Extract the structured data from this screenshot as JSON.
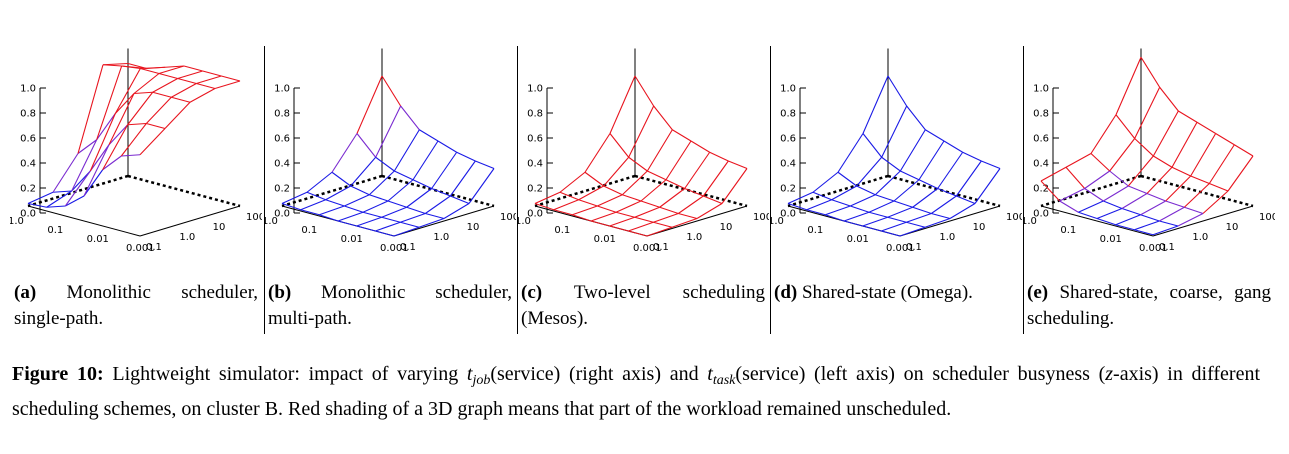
{
  "figure": {
    "label": "Figure 10:",
    "caption_parts": [
      "Lightweight simulator: impact of varying ",
      "t",
      "job",
      "(service) (right axis) and ",
      "t",
      "task",
      "(service) (left axis) on scheduler busyness (",
      "z",
      "-axis) in different scheduling schemes, on cluster B. Red shading of a 3D graph means that part of the workload remained unscheduled."
    ]
  },
  "axes": {
    "z_ticks": [
      "0.0",
      "0.2",
      "0.4",
      "0.6",
      "0.8",
      "1.0"
    ],
    "left_axis_ticks": [
      "1.0",
      "0.1",
      "0.01",
      "0.001"
    ],
    "right_axis_ticks": [
      "0.1",
      "1.0",
      "10",
      "100"
    ]
  },
  "colors": {
    "red": "#e8141e",
    "blue": "#1a1ae6",
    "purple": "#7a2ad0"
  },
  "chart_data": [
    {
      "type": "surface3d",
      "panel": "a",
      "title": "Monolithic scheduler, single-path.",
      "x_label": "",
      "y_label": "",
      "z_label": "",
      "x_ticks": [
        "1.0",
        "0.1",
        "0.01",
        "0.001"
      ],
      "y_ticks": [
        "0.1",
        "1.0",
        "10",
        "100"
      ],
      "z_range": [
        0,
        1
      ],
      "z": [
        [
          0.9,
          0.9,
          0.95,
          1.0,
          1.0,
          1.0,
          1.0
        ],
        [
          0.95,
          0.98,
          1.0,
          1.0,
          1.0,
          1.0,
          1.0
        ],
        [
          0.3,
          0.45,
          0.7,
          0.9,
          0.95,
          0.95,
          0.95
        ],
        [
          0.05,
          0.1,
          0.3,
          0.55,
          0.75,
          0.8,
          0.8
        ],
        [
          0.02,
          0.03,
          0.08,
          0.2,
          0.45,
          0.6,
          0.65
        ]
      ],
      "red_mask": [
        [
          1,
          1,
          1,
          1,
          1,
          1,
          1
        ],
        [
          1,
          1,
          1,
          1,
          1,
          1,
          1
        ],
        [
          0,
          0,
          1,
          1,
          1,
          1,
          1
        ],
        [
          0,
          0,
          0,
          0,
          1,
          1,
          1
        ],
        [
          0,
          0,
          0,
          0,
          0,
          0,
          0
        ]
      ]
    },
    {
      "type": "surface3d",
      "panel": "b",
      "title": "Monolithic scheduler, multi-path.",
      "x_label": "",
      "y_label": "",
      "z_label": "",
      "x_ticks": [
        "1.0",
        "0.1",
        "0.01",
        "0.001"
      ],
      "y_ticks": [
        "0.1",
        "1.0",
        "10",
        "100"
      ],
      "z_range": [
        0,
        1
      ],
      "z": [
        [
          0.8,
          0.6,
          0.45,
          0.4,
          0.35,
          0.32,
          0.3
        ],
        [
          0.4,
          0.25,
          0.18,
          0.15,
          0.12,
          0.1,
          0.08
        ],
        [
          0.15,
          0.08,
          0.05,
          0.04,
          0.03,
          0.02,
          0.02
        ],
        [
          0.05,
          0.03,
          0.02,
          0.01,
          0.01,
          0.01,
          0.01
        ],
        [
          0.02,
          0.01,
          0.01,
          0.0,
          0.0,
          0.0,
          0.0
        ]
      ],
      "red_mask": [
        [
          1,
          0,
          0,
          0,
          0,
          0,
          0
        ],
        [
          0,
          0,
          0,
          0,
          0,
          0,
          0
        ],
        [
          0,
          0,
          0,
          0,
          0,
          0,
          0
        ],
        [
          0,
          0,
          0,
          0,
          0,
          0,
          0
        ],
        [
          0,
          0,
          0,
          0,
          0,
          0,
          0
        ]
      ]
    },
    {
      "type": "surface3d",
      "panel": "c",
      "title": "Two-level scheduling (Mesos).",
      "x_label": "",
      "y_label": "",
      "z_label": "",
      "x_ticks": [
        "1.0",
        "0.1",
        "0.01",
        "0.001"
      ],
      "y_ticks": [
        "0.1",
        "1.0",
        "10",
        "100"
      ],
      "z_range": [
        0,
        1
      ],
      "z": [
        [
          0.8,
          0.6,
          0.45,
          0.4,
          0.35,
          0.32,
          0.3
        ],
        [
          0.4,
          0.25,
          0.18,
          0.15,
          0.12,
          0.1,
          0.08
        ],
        [
          0.15,
          0.08,
          0.05,
          0.04,
          0.03,
          0.02,
          0.02
        ],
        [
          0.05,
          0.03,
          0.02,
          0.01,
          0.01,
          0.01,
          0.01
        ],
        [
          0.02,
          0.01,
          0.01,
          0.0,
          0.0,
          0.0,
          0.0
        ]
      ],
      "red_mask": [
        [
          1,
          1,
          1,
          1,
          1,
          1,
          1
        ],
        [
          1,
          1,
          1,
          1,
          1,
          1,
          1
        ],
        [
          1,
          1,
          1,
          1,
          1,
          1,
          1
        ],
        [
          1,
          1,
          1,
          1,
          1,
          1,
          1
        ],
        [
          1,
          1,
          1,
          1,
          1,
          1,
          1
        ]
      ]
    },
    {
      "type": "surface3d",
      "panel": "d",
      "title": "Shared-state (Omega).",
      "x_label": "",
      "y_label": "",
      "z_label": "",
      "x_ticks": [
        "1.0",
        "0.1",
        "0.01",
        "0.001"
      ],
      "y_ticks": [
        "0.1",
        "1.0",
        "10",
        "100"
      ],
      "z_range": [
        0,
        1
      ],
      "z": [
        [
          0.8,
          0.6,
          0.45,
          0.4,
          0.35,
          0.32,
          0.3
        ],
        [
          0.4,
          0.25,
          0.18,
          0.15,
          0.12,
          0.1,
          0.08
        ],
        [
          0.15,
          0.08,
          0.05,
          0.04,
          0.03,
          0.02,
          0.02
        ],
        [
          0.05,
          0.03,
          0.02,
          0.01,
          0.01,
          0.01,
          0.01
        ],
        [
          0.02,
          0.01,
          0.01,
          0.0,
          0.0,
          0.0,
          0.0
        ]
      ],
      "red_mask": [
        [
          0,
          0,
          0,
          0,
          0,
          0,
          0
        ],
        [
          0,
          0,
          0,
          0,
          0,
          0,
          0
        ],
        [
          0,
          0,
          0,
          0,
          0,
          0,
          0
        ],
        [
          0,
          0,
          0,
          0,
          0,
          0,
          0
        ],
        [
          0,
          0,
          0,
          0,
          0,
          0,
          0
        ]
      ]
    },
    {
      "type": "surface3d",
      "panel": "e",
      "title": "Shared-state, coarse, gang scheduling.",
      "x_label": "",
      "y_label": "",
      "z_label": "",
      "x_ticks": [
        "1.0",
        "0.1",
        "0.01",
        "0.001"
      ],
      "y_ticks": [
        "0.1",
        "1.0",
        "10",
        "100"
      ],
      "z_range": [
        0,
        1
      ],
      "z": [
        [
          0.95,
          0.75,
          0.6,
          0.55,
          0.5,
          0.45,
          0.4
        ],
        [
          0.55,
          0.4,
          0.3,
          0.25,
          0.22,
          0.2,
          0.18
        ],
        [
          0.3,
          0.2,
          0.12,
          0.1,
          0.08,
          0.07,
          0.06
        ],
        [
          0.25,
          0.12,
          0.06,
          0.04,
          0.03,
          0.02,
          0.02
        ],
        [
          0.2,
          0.08,
          0.03,
          0.02,
          0.01,
          0.01,
          0.01
        ]
      ],
      "red_mask": [
        [
          1,
          1,
          1,
          1,
          1,
          1,
          1
        ],
        [
          1,
          1,
          1,
          1,
          1,
          1,
          1
        ],
        [
          1,
          0,
          0,
          0,
          0,
          0,
          0
        ],
        [
          1,
          0,
          0,
          0,
          0,
          0,
          0
        ],
        [
          1,
          0,
          0,
          0,
          0,
          0,
          0
        ]
      ]
    }
  ],
  "sub_captions": [
    {
      "label": "(a)",
      "text": "Monolithic scheduler, single-path."
    },
    {
      "label": "(b)",
      "text": "Monolithic scheduler, multi-path."
    },
    {
      "label": "(c)",
      "text": "Two-level scheduling (Mesos)."
    },
    {
      "label": "(d)",
      "text": "Shared-state (Omega)."
    },
    {
      "label": "(e)",
      "text": "Shared-state, coarse, gang scheduling."
    }
  ]
}
